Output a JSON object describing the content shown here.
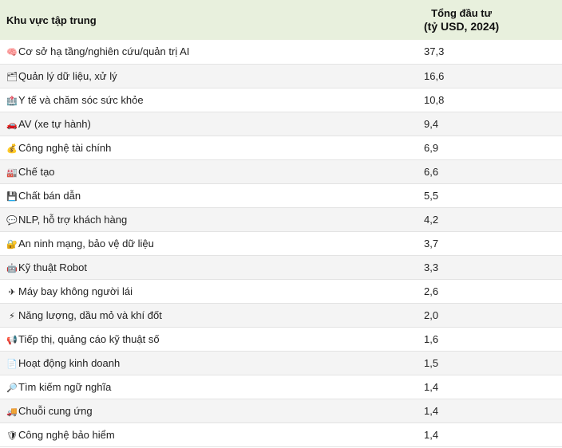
{
  "header": {
    "col1": "Khu vực tập trung",
    "col2_line1": "Tổng đầu tư",
    "col2_line2": "(tỷ USD, 2024)"
  },
  "rows": [
    {
      "icon": "brain-icon",
      "glyph": "🧠",
      "label": "Cơ sở hạ tầng/nghiên cứu/quản trị AI",
      "value": "37,3"
    },
    {
      "icon": "data-management-icon",
      "glyph": "🗂",
      "label": "Quản lý dữ liệu, xử lý",
      "value": "16,6"
    },
    {
      "icon": "healthcare-icon",
      "glyph": "🏥",
      "label": "Y tế và chăm sóc sức khỏe",
      "value": "10,8"
    },
    {
      "icon": "car-icon",
      "glyph": "🚗",
      "label": "AV (xe tự hành)",
      "value": "9,4"
    },
    {
      "icon": "money-bag-icon",
      "glyph": "💰",
      "label": "Công nghệ tài chính",
      "value": "6,9"
    },
    {
      "icon": "factory-icon",
      "glyph": "🏭",
      "label": "Chế tạo",
      "value": "6,6"
    },
    {
      "icon": "floppy-disk-icon",
      "glyph": "💾",
      "label": "Chất bán dẫn",
      "value": "5,5"
    },
    {
      "icon": "speech-bubble-icon",
      "glyph": "💬",
      "label": "NLP, hỗ trợ khách hàng",
      "value": "4,2"
    },
    {
      "icon": "lock-icon",
      "glyph": "🔐",
      "label": "An ninh mạng, bảo vệ dữ liệu",
      "value": "3,7"
    },
    {
      "icon": "robot-icon",
      "glyph": "🤖",
      "label": "Kỹ thuật Robot",
      "value": "3,3"
    },
    {
      "icon": "drone-icon",
      "glyph": "✈",
      "label": "Máy bay không người lái",
      "value": "2,6"
    },
    {
      "icon": "lightning-icon",
      "glyph": "⚡",
      "label": "Năng lượng, dầu mỏ và khí đốt",
      "value": "2,0"
    },
    {
      "icon": "megaphone-icon",
      "glyph": "📢",
      "label": "Tiếp thị, quảng cáo kỹ thuật số",
      "value": "1,6"
    },
    {
      "icon": "document-icon",
      "glyph": "📄",
      "label": "Hoạt động kinh doanh",
      "value": "1,5"
    },
    {
      "icon": "magnifier-icon",
      "glyph": "🔎",
      "label": "Tìm kiếm ngữ nghĩa",
      "value": "1,4"
    },
    {
      "icon": "truck-icon",
      "glyph": "🚚",
      "label": "Chuỗi cung ứng",
      "value": "1,4"
    },
    {
      "icon": "shield-icon",
      "glyph": "🛡",
      "label": "Công nghệ bảo hiểm",
      "value": "1,4"
    }
  ]
}
